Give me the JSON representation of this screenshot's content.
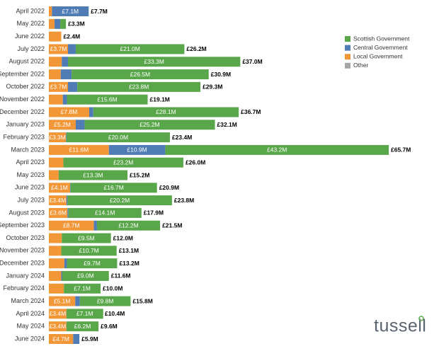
{
  "chart_data": {
    "type": "bar",
    "orientation": "horizontal",
    "legend": "upper right",
    "categories": [
      "April 2022",
      "May 2022",
      "June 2022",
      "July 2022",
      "August 2022",
      "September 2022",
      "October 2022",
      "November 2022",
      "December 2022",
      "January 2023",
      "February 2023",
      "March 2023",
      "April 2023",
      "May 2023",
      "June 2023",
      "July 2023",
      "August 2023",
      "September 2023",
      "October 2023",
      "November 2023",
      "December 2023",
      "January 2024",
      "February 2024",
      "March 2024",
      "April 2024",
      "May 2024",
      "June 2024"
    ],
    "series": [
      {
        "name": "Scottish Government",
        "color": "#5aa64a",
        "values": [
          0,
          1.1,
          0,
          21.0,
          33.3,
          26.5,
          23.8,
          15.6,
          28.1,
          25.2,
          20.0,
          43.2,
          23.2,
          13.3,
          16.7,
          20.2,
          14.1,
          12.2,
          9.5,
          10.7,
          9.7,
          9.0,
          7.1,
          9.8,
          7.1,
          6.2,
          0
        ],
        "value_labels": [
          null,
          null,
          null,
          "£21.0M",
          "£33.3M",
          "£26.5M",
          "£23.8M",
          "£15.6M",
          "£28.1M",
          "£25.2M",
          "£20.0M",
          "£43.2M",
          "£23.2M",
          "£13.3M",
          "£16.7M",
          "£20.2M",
          "£14.1M",
          "£12.2M",
          "£9.5M",
          "£10.7M",
          "£9.7M",
          "£9.0M",
          "£7.1M",
          "£9.8M",
          "£7.1M",
          "£6.2M",
          null
        ]
      },
      {
        "name": "Central Government",
        "color": "#4f7cb5",
        "values": [
          7.1,
          1.1,
          0,
          1.5,
          1.2,
          2.1,
          1.8,
          0.8,
          0.8,
          1.7,
          0.1,
          10.9,
          0,
          0,
          0.1,
          0.2,
          0.2,
          0.6,
          0,
          0,
          0.5,
          0.2,
          0,
          0.9,
          0,
          0,
          1.2
        ],
        "value_labels": [
          "£7.1M",
          null,
          null,
          null,
          null,
          null,
          null,
          null,
          null,
          null,
          null,
          "£10.9M",
          null,
          null,
          null,
          null,
          null,
          null,
          null,
          null,
          null,
          null,
          null,
          null,
          null,
          null,
          null
        ]
      },
      {
        "name": "Local Government",
        "color": "#f29737",
        "values": [
          0.6,
          1.1,
          2.4,
          3.7,
          2.5,
          2.3,
          3.7,
          2.7,
          7.8,
          5.2,
          3.3,
          11.6,
          2.8,
          1.9,
          4.1,
          3.4,
          3.6,
          8.7,
          2.5,
          2.4,
          3.0,
          2.4,
          2.9,
          5.1,
          3.4,
          3.4,
          4.7
        ],
        "value_labels": [
          null,
          null,
          null,
          "£3.7M",
          null,
          null,
          "£3.7M",
          null,
          "£7.8M",
          "£5.2M",
          "£3.3M",
          "£11.6M",
          null,
          null,
          "£4.1M",
          "£3.4M",
          "£3.6M",
          "£8.7M",
          null,
          null,
          null,
          null,
          null,
          "£5.1M",
          "£3.4M",
          "£3.4M",
          "£4.7M"
        ]
      },
      {
        "name": "Other",
        "color": "#a6a6a6",
        "values": [
          0,
          0,
          0,
          0,
          0,
          0,
          0,
          0,
          0,
          0,
          0,
          0,
          0,
          0,
          0,
          0,
          0,
          0,
          0,
          0,
          0,
          0,
          0,
          0,
          0,
          0,
          0
        ]
      }
    ],
    "totals": [
      7.7,
      3.3,
      2.4,
      26.2,
      37.0,
      30.9,
      29.3,
      19.1,
      36.7,
      32.1,
      23.4,
      65.7,
      26.0,
      15.2,
      20.9,
      23.8,
      17.9,
      21.5,
      12.0,
      13.1,
      13.2,
      11.6,
      10.0,
      15.8,
      10.4,
      9.6,
      5.9
    ],
    "total_labels": [
      "£7.7M",
      "£3.3M",
      "£2.4M",
      "£26.2M",
      "£37.0M",
      "£30.9M",
      "£29.3M",
      "£19.1M",
      "£36.7M",
      "£32.1M",
      "£23.4M",
      "£65.7M",
      "£26.0M",
      "£15.2M",
      "£20.9M",
      "£23.8M",
      "£17.9M",
      "£21.5M",
      "£12.0M",
      "£13.1M",
      "£13.2M",
      "£11.6M",
      "£10.0M",
      "£15.8M",
      "£10.4M",
      "£9.6M",
      "£5.9M"
    ]
  },
  "logo": "tussell"
}
